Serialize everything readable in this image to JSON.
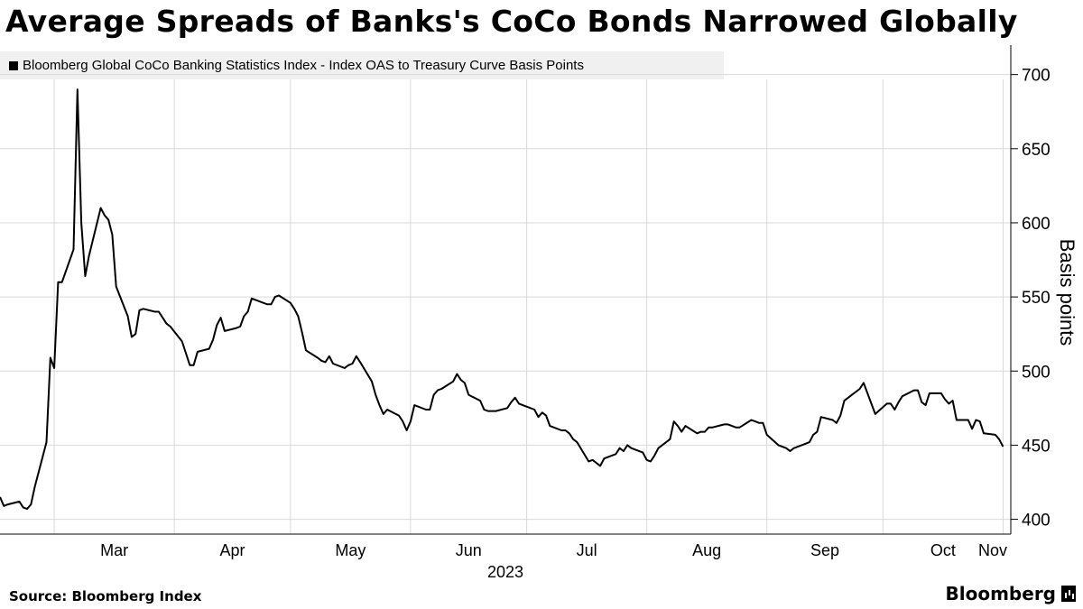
{
  "title": "Average Spreads of Banks's CoCo Bonds Narrowed Globally",
  "source": "Source: Bloomberg Index",
  "brand": "Bloomberg",
  "chart_data": {
    "type": "line",
    "legend": "Bloomberg Global CoCo Banking Statistics Index - Index OAS to Treasury Curve Basis Points",
    "ylabel": "Basis points",
    "xlabel": "2023",
    "ylim": [
      390,
      715
    ],
    "yticks": [
      400,
      450,
      500,
      550,
      600,
      650,
      700
    ],
    "x_categories": [
      "Mar",
      "Apr",
      "May",
      "Jun",
      "Jul",
      "Aug",
      "Sep",
      "Oct",
      "Nov"
    ],
    "x_year": "2023",
    "grid": true,
    "series": [
      {
        "name": "Bloomberg Global CoCo Banking Statistics Index - Index OAS to Treasury Curve Basis Points",
        "color": "#000000",
        "x": [
          "2023-02-15",
          "2023-02-16",
          "2023-02-17",
          "2023-02-20",
          "2023-02-21",
          "2023-02-22",
          "2023-02-23",
          "2023-02-24",
          "2023-02-27",
          "2023-02-28",
          "2023-03-01",
          "2023-03-02",
          "2023-03-03",
          "2023-03-06",
          "2023-03-07",
          "2023-03-08",
          "2023-03-09",
          "2023-03-10",
          "2023-03-13",
          "2023-03-14",
          "2023-03-15",
          "2023-03-16",
          "2023-03-17",
          "2023-03-20",
          "2023-03-21",
          "2023-03-22",
          "2023-03-23",
          "2023-03-24",
          "2023-03-27",
          "2023-03-28",
          "2023-03-29",
          "2023-03-30",
          "2023-03-31",
          "2023-04-03",
          "2023-04-04",
          "2023-04-05",
          "2023-04-06",
          "2023-04-07",
          "2023-04-10",
          "2023-04-11",
          "2023-04-12",
          "2023-04-13",
          "2023-04-14",
          "2023-04-17",
          "2023-04-18",
          "2023-04-19",
          "2023-04-20",
          "2023-04-21",
          "2023-04-24",
          "2023-04-25",
          "2023-04-26",
          "2023-04-27",
          "2023-04-28",
          "2023-05-01",
          "2023-05-02",
          "2023-05-03",
          "2023-05-04",
          "2023-05-05",
          "2023-05-08",
          "2023-05-09",
          "2023-05-10",
          "2023-05-11",
          "2023-05-12",
          "2023-05-15",
          "2023-05-16",
          "2023-05-17",
          "2023-05-18",
          "2023-05-19",
          "2023-05-22",
          "2023-05-23",
          "2023-05-24",
          "2023-05-25",
          "2023-05-26",
          "2023-05-29",
          "2023-05-30",
          "2023-05-31",
          "2023-06-01",
          "2023-06-02",
          "2023-06-05",
          "2023-06-06",
          "2023-06-07",
          "2023-06-08",
          "2023-06-09",
          "2023-06-12",
          "2023-06-13",
          "2023-06-14",
          "2023-06-15",
          "2023-06-16",
          "2023-06-19",
          "2023-06-20",
          "2023-06-21",
          "2023-06-22",
          "2023-06-23",
          "2023-06-26",
          "2023-06-27",
          "2023-06-28",
          "2023-06-29",
          "2023-06-30",
          "2023-07-03",
          "2023-07-04",
          "2023-07-05",
          "2023-07-06",
          "2023-07-07",
          "2023-07-10",
          "2023-07-11",
          "2023-07-12",
          "2023-07-13",
          "2023-07-14",
          "2023-07-17",
          "2023-07-18",
          "2023-07-19",
          "2023-07-20",
          "2023-07-21",
          "2023-07-24",
          "2023-07-25",
          "2023-07-26",
          "2023-07-27",
          "2023-07-28",
          "2023-07-31",
          "2023-08-01",
          "2023-08-02",
          "2023-08-03",
          "2023-08-04",
          "2023-08-07",
          "2023-08-08",
          "2023-08-09",
          "2023-08-10",
          "2023-08-11",
          "2023-08-14",
          "2023-08-15",
          "2023-08-16",
          "2023-08-17",
          "2023-08-18",
          "2023-08-21",
          "2023-08-22",
          "2023-08-23",
          "2023-08-24",
          "2023-08-25",
          "2023-08-28",
          "2023-08-29",
          "2023-08-30",
          "2023-08-31",
          "2023-09-01",
          "2023-09-04",
          "2023-09-05",
          "2023-09-06",
          "2023-09-07",
          "2023-09-08",
          "2023-09-11",
          "2023-09-12",
          "2023-09-13",
          "2023-09-14",
          "2023-09-15",
          "2023-09-18",
          "2023-09-19",
          "2023-09-20",
          "2023-09-21",
          "2023-09-22",
          "2023-09-25",
          "2023-09-26",
          "2023-09-27",
          "2023-09-28",
          "2023-09-29",
          "2023-10-02",
          "2023-10-03",
          "2023-10-04",
          "2023-10-05",
          "2023-10-06",
          "2023-10-09",
          "2023-10-10",
          "2023-10-11",
          "2023-10-12",
          "2023-10-13",
          "2023-10-16",
          "2023-10-17",
          "2023-10-18",
          "2023-10-19",
          "2023-10-20",
          "2023-10-23",
          "2023-10-24",
          "2023-10-25",
          "2023-10-26",
          "2023-10-27",
          "2023-10-30",
          "2023-10-31",
          "2023-11-01"
        ],
        "y": [
          415,
          409,
          410,
          412,
          408,
          407,
          410,
          422,
          452,
          509,
          502,
          560,
          560,
          582,
          690,
          600,
          564,
          578,
          610,
          605,
          602,
          592,
          557,
          537,
          523,
          525,
          541,
          542,
          540,
          540,
          536,
          532,
          530,
          520,
          512,
          504,
          504,
          513,
          515,
          521,
          531,
          536,
          527,
          529,
          530,
          537,
          540,
          549,
          546,
          545,
          545,
          550,
          551,
          546,
          542,
          537,
          526,
          514,
          509,
          507,
          506,
          510,
          505,
          502,
          504,
          505,
          510,
          506,
          493,
          484,
          477,
          471,
          474,
          470,
          466,
          460,
          466,
          477,
          474,
          474,
          484,
          487,
          488,
          493,
          498,
          494,
          492,
          484,
          480,
          474,
          473,
          473,
          473,
          475,
          479,
          482,
          478,
          477,
          474,
          469,
          472,
          470,
          463,
          460,
          460,
          458,
          454,
          452,
          439,
          440,
          438,
          436,
          441,
          444,
          448,
          446,
          450,
          448,
          445,
          440,
          439,
          443,
          448,
          454,
          466,
          463,
          459,
          463,
          458,
          459,
          459,
          462,
          462,
          464,
          464,
          463,
          462,
          462,
          467,
          466,
          465,
          465,
          457,
          450,
          449,
          448,
          446,
          448,
          451,
          452,
          457,
          459,
          469,
          467,
          465,
          470,
          480,
          482,
          488,
          492,
          485,
          478,
          471,
          478,
          478,
          474,
          479,
          483,
          487,
          487,
          479,
          477,
          485,
          485,
          481,
          478,
          480,
          467,
          467,
          461,
          467,
          466,
          458,
          457,
          454,
          449
        ]
      }
    ]
  }
}
